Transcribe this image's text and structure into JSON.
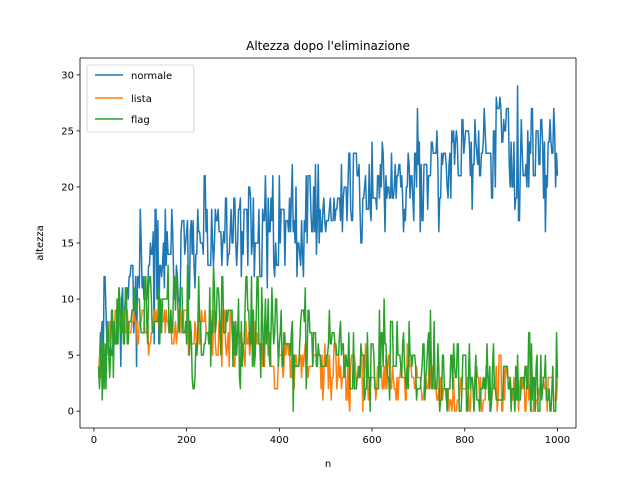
{
  "chart_data": {
    "type": "line",
    "title": "Altezza dopo l'eliminazione",
    "xlabel": "n",
    "ylabel": "altezza",
    "xlim": [
      -30,
      1040
    ],
    "ylim": [
      -1.5,
      31.5
    ],
    "xticks": [
      0,
      200,
      400,
      600,
      800,
      1000
    ],
    "yticks": [
      0,
      5,
      10,
      15,
      20,
      25,
      30
    ],
    "grid": false,
    "legend_position": "upper left",
    "series": [
      {
        "name": "normale",
        "color": "#1f77b4",
        "trend": [
          [
            10,
            7
          ],
          [
            50,
            8
          ],
          [
            100,
            11
          ],
          [
            150,
            13
          ],
          [
            200,
            14
          ],
          [
            250,
            15
          ],
          [
            300,
            16
          ],
          [
            350,
            16
          ],
          [
            400,
            16.5
          ],
          [
            450,
            17
          ],
          [
            500,
            18
          ],
          [
            550,
            18.5
          ],
          [
            600,
            19.5
          ],
          [
            650,
            20.5
          ],
          [
            700,
            21
          ],
          [
            750,
            21.5
          ],
          [
            800,
            22
          ],
          [
            850,
            22.5
          ],
          [
            900,
            23
          ],
          [
            950,
            23
          ],
          [
            1000,
            22
          ]
        ],
        "noise": 2.4,
        "min": 4,
        "max": 30,
        "seed": 11
      },
      {
        "name": "lista",
        "color": "#ff7f0e",
        "trend": [
          [
            10,
            4
          ],
          [
            30,
            7
          ],
          [
            60,
            8
          ],
          [
            100,
            8.2
          ],
          [
            150,
            8
          ],
          [
            200,
            7.5
          ],
          [
            250,
            7
          ],
          [
            300,
            6.5
          ],
          [
            350,
            5.5
          ],
          [
            400,
            5
          ],
          [
            450,
            4.5
          ],
          [
            500,
            4
          ],
          [
            550,
            3.5
          ],
          [
            600,
            3
          ],
          [
            650,
            2.8
          ],
          [
            700,
            2.5
          ],
          [
            750,
            2.2
          ],
          [
            800,
            2
          ],
          [
            850,
            2
          ],
          [
            900,
            1.8
          ],
          [
            950,
            1.5
          ],
          [
            1000,
            1.5
          ]
        ],
        "noise": 1.3,
        "min": 0,
        "max": 9,
        "seed": 23
      },
      {
        "name": "flag",
        "color": "#2ca02c",
        "trend": [
          [
            10,
            4
          ],
          [
            40,
            7
          ],
          [
            80,
            8
          ],
          [
            120,
            8.5
          ],
          [
            160,
            8.3
          ],
          [
            200,
            8
          ],
          [
            250,
            7.5
          ],
          [
            300,
            7
          ],
          [
            350,
            7
          ],
          [
            400,
            6.5
          ],
          [
            450,
            6
          ],
          [
            500,
            6
          ],
          [
            550,
            5
          ],
          [
            600,
            4.5
          ],
          [
            650,
            4.5
          ],
          [
            700,
            4
          ],
          [
            750,
            3.5
          ],
          [
            800,
            3
          ],
          [
            850,
            3
          ],
          [
            900,
            2.5
          ],
          [
            950,
            2.5
          ],
          [
            1000,
            2.5
          ]
        ],
        "noise": 2.3,
        "min": 0,
        "max": 13,
        "seed": 37
      }
    ]
  }
}
